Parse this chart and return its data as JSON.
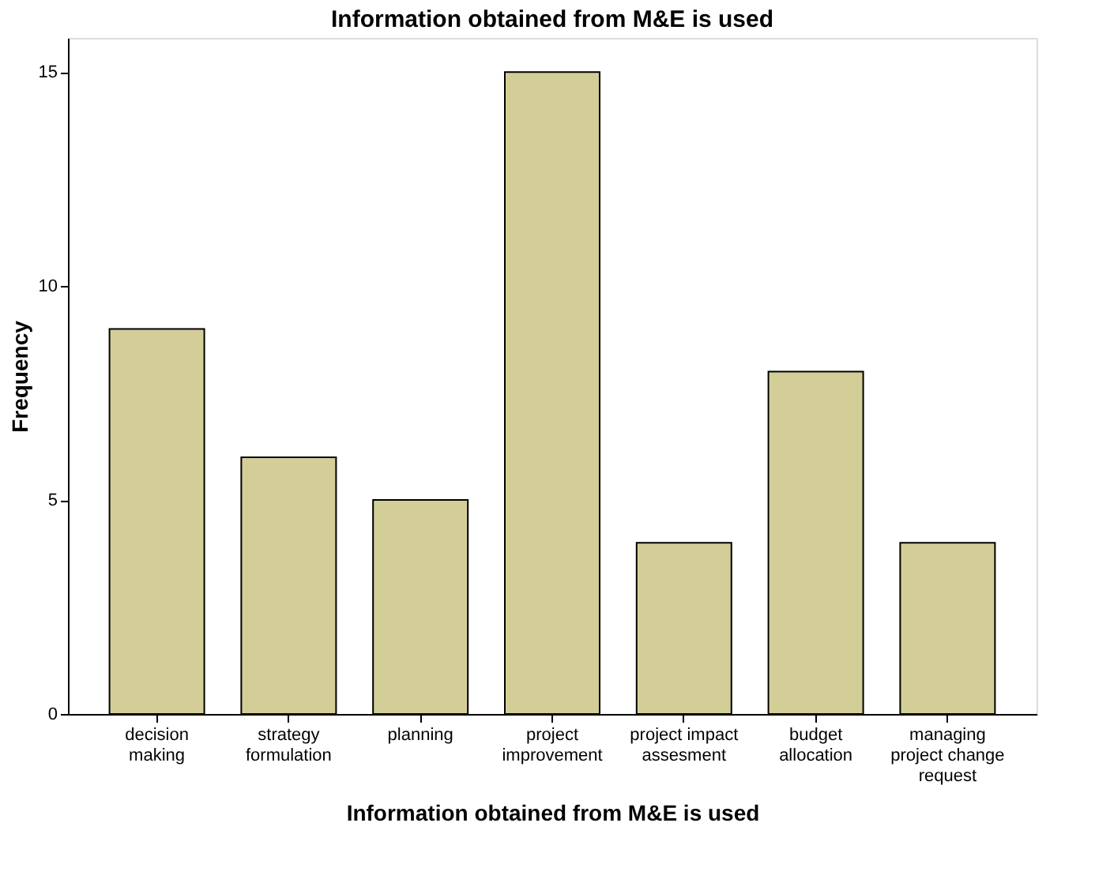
{
  "chart_data": {
    "type": "bar",
    "title": "Information obtained from M&E is used",
    "xlabel": "Information obtained from M&E is used",
    "ylabel": "Frequency",
    "categories": [
      "decision\nmaking",
      "strategy\nformulation",
      "planning",
      "project\nimprovement",
      "project impact\nassesment",
      "budget\nallocation",
      "managing\nproject change\nrequest"
    ],
    "values": [
      9,
      6,
      5,
      15,
      4,
      8,
      4
    ],
    "color": "#d3ce97",
    "ylim": [
      0,
      15.8
    ],
    "yticks": [
      0,
      5,
      10,
      15
    ],
    "grid": false
  }
}
